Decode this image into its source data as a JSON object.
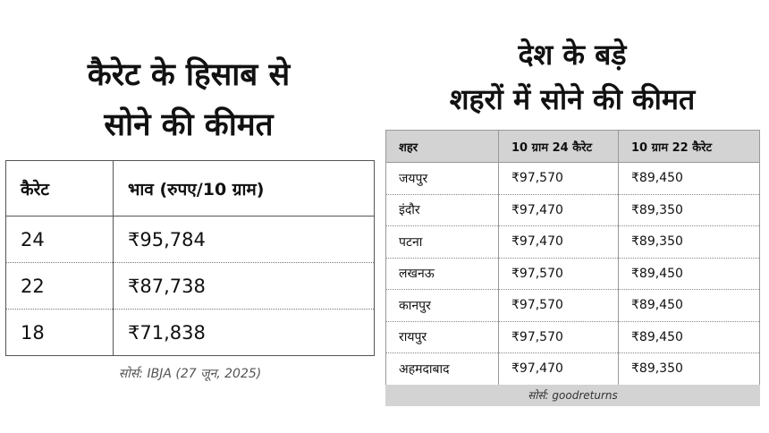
{
  "left": {
    "title_line1": "कैरेट के हिसाब से",
    "title_line2": "सोने की कीमत",
    "table": {
      "headers": [
        "कैरेट",
        "भाव (रुपए/10 ग्राम)"
      ],
      "rows": [
        [
          "24",
          "₹95,784"
        ],
        [
          "22",
          "₹87,738"
        ],
        [
          "18",
          "₹71,838"
        ]
      ]
    },
    "source": "सोर्स: IBJA (27 जून, 2025)"
  },
  "right": {
    "title_line1": "देश के बड़े",
    "title_line2": "शहरों में सोने की कीमत",
    "table": {
      "headers": [
        "शहर",
        "10 ग्राम 24 कैरेट",
        "10 ग्राम 22 कैरेट"
      ],
      "rows": [
        [
          "जयपुर",
          "₹97,570",
          "₹89,450"
        ],
        [
          "इंदौर",
          "₹97,470",
          "₹89,350"
        ],
        [
          "पटना",
          "₹97,470",
          "₹89,350"
        ],
        [
          "लखनऊ",
          "₹97,570",
          "₹89,450"
        ],
        [
          "कानपुर",
          "₹97,570",
          "₹89,450"
        ],
        [
          "रायपुर",
          "₹97,570",
          "₹89,450"
        ],
        [
          "अहमदाबाद",
          "₹97,470",
          "₹89,350"
        ]
      ]
    },
    "source": "सोर्स: goodreturns"
  }
}
